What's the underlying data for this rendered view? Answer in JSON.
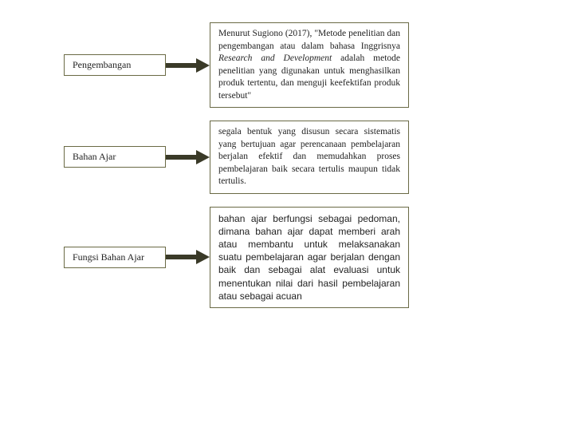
{
  "rows": [
    {
      "label": "Pengembangan",
      "description_html": "Menurut Sugiono (2017), \"Metode penelitian dan pengembangan atau dalam bahasa Inggrisnya <i>Research and Development</i> adalah metode penelitian yang digunakan untuk menghasilkan produk tertentu, dan menguji keefektifan produk tersebut\""
    },
    {
      "label": "Bahan Ajar",
      "description_html": "segala bentuk yang disusun secara sistematis yang bertujuan agar perencanaan pembelajaran berjalan efektif dan memudahkan proses pembelajaran baik secara tertulis maupun tidak tertulis."
    },
    {
      "label": "Fungsi Bahan Ajar",
      "description_html": "bahan ajar berfungsi sebagai pedoman, dimana bahan ajar dapat memberi arah atau membantu untuk melaksanakan suatu pembelajaran agar berjalan dengan baik dan sebagai alat evaluasi untuk menentukan nilai dari hasil pembelajaran atau sebagai acuan"
    }
  ],
  "colors": {
    "border": "#6a6a45",
    "arrow_fill": "#3a3a28",
    "background": "#ffffff",
    "text": "#222222"
  },
  "typography": {
    "label_fontsize": 12,
    "desc_fontsize": 11.5,
    "font_family": "Georgia, Times New Roman, serif",
    "text_align": "justify"
  },
  "layout": {
    "label_width": 128,
    "arrow_gap": 55,
    "desc_width": 250
  }
}
